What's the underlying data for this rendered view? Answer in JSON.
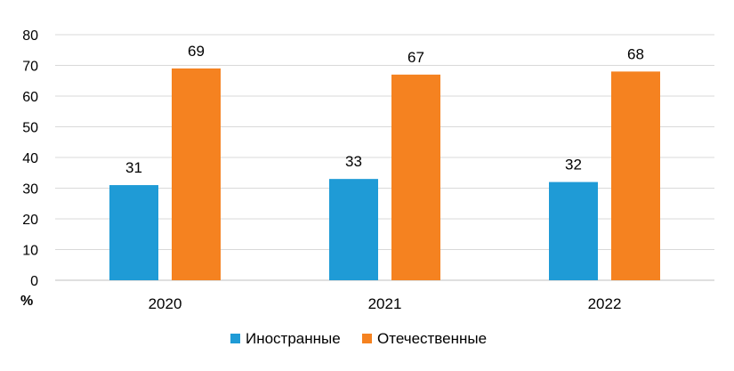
{
  "chart_data": {
    "type": "bar",
    "categories": [
      "2020",
      "2021",
      "2022"
    ],
    "series": [
      {
        "name": "Иностранные",
        "values": [
          31,
          33,
          32
        ],
        "color": "#1f9bd6"
      },
      {
        "name": "Отечественные",
        "values": [
          69,
          67,
          68
        ],
        "color": "#f58220"
      }
    ],
    "title": "",
    "xlabel": "",
    "ylabel": "%",
    "ylim": [
      0,
      80
    ],
    "yticks": [
      0,
      10,
      20,
      30,
      40,
      50,
      60,
      70,
      80
    ],
    "grid": true,
    "legend_position": "bottom"
  }
}
